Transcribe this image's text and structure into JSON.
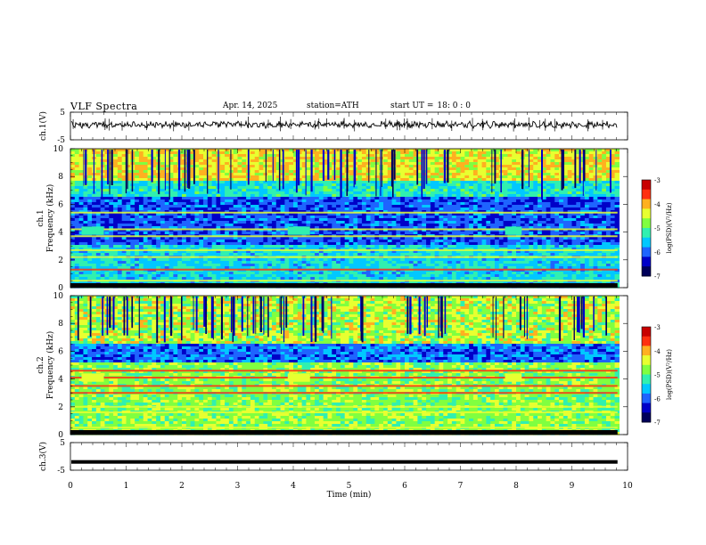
{
  "header": {
    "title": "VLF  Spectra",
    "date": "Apr. 14, 2025",
    "station": "station=ATH",
    "start_label": "start  UT  =",
    "start_time": "18: 0  : 0"
  },
  "chart_data": [
    {
      "type": "line",
      "name": "ch1-waveform",
      "ylabel": "ch.1(V)",
      "ylim": [
        -5,
        5
      ],
      "yticks": [
        "5",
        "-5"
      ],
      "xlim": [
        0,
        10
      ],
      "x_extent_min": 9.82,
      "baseline_v": 0.5
    },
    {
      "type": "heatmap",
      "name": "ch1-spectrogram",
      "ylabel": "Frequency (kHz)",
      "channel_label": "ch.1",
      "ylim": [
        0,
        10
      ],
      "yticks": [
        "0",
        "2",
        "4",
        "6",
        "8",
        "10"
      ],
      "xlim": [
        0,
        10
      ],
      "strong_lines_khz": [
        0.5,
        1.3,
        2.2,
        2.7,
        3.7,
        4.2,
        5.4
      ],
      "burst_boxes_min": [
        [
          0.2,
          0.6
        ],
        [
          3.9,
          4.3
        ],
        [
          7.8,
          8.1
        ]
      ],
      "colorbar": {
        "label": "log(PSD)(V²/Hz)",
        "range": [
          -7,
          -3
        ],
        "ticks": [
          "-3",
          "-4",
          "-5",
          "-6",
          "-7"
        ]
      }
    },
    {
      "type": "heatmap",
      "name": "ch2-spectrogram",
      "ylabel": "Frequency (kHz)",
      "channel_label": "ch.2",
      "ylim": [
        0,
        10
      ],
      "yticks": [
        "0",
        "2",
        "4",
        "6",
        "8",
        "10"
      ],
      "xlim": [
        0,
        10
      ],
      "strong_lines_khz": [
        0.5,
        1.6,
        2.0,
        3.0,
        3.5,
        4.1,
        4.6
      ],
      "burst_boxes_min": [
        [
          0.2,
          0.6
        ],
        [
          3.9,
          4.3
        ],
        [
          7.8,
          8.1
        ]
      ],
      "colorbar": {
        "label": "log(PSD)(V²/Hz)",
        "range": [
          -7,
          -3
        ],
        "ticks": [
          "-3",
          "-4",
          "-5",
          "-6",
          "-7"
        ]
      }
    },
    {
      "type": "line",
      "name": "ch3-waveform",
      "ylabel": "ch.3(V)",
      "ylim": [
        -5,
        5
      ],
      "yticks": [
        "5",
        "-5"
      ],
      "xlim": [
        0,
        10
      ],
      "x_extent_min": 9.82,
      "baseline_v": -2
    }
  ],
  "xaxis": {
    "label": "Time (min)",
    "ticks": [
      "0",
      "1",
      "2",
      "3",
      "4",
      "5",
      "6",
      "7",
      "8",
      "9",
      "10"
    ]
  },
  "colors": {
    "cmap": [
      "#00005a",
      "#0000c8",
      "#1e64ff",
      "#00c8ff",
      "#30f0b0",
      "#80ff40",
      "#e8ff30",
      "#ffb020",
      "#ff3010",
      "#c80000"
    ]
  }
}
